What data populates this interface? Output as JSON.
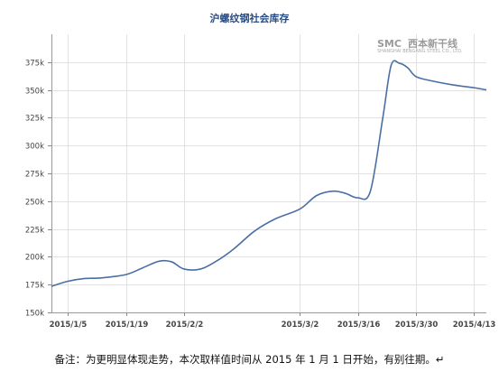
{
  "title": "沪螺纹钢社会库存",
  "note": "备注：为更明显体现走势，本次取样值时间从 2015 年 1 月 1 日开始，有别往期。↵",
  "watermark": {
    "logo": "SMC",
    "text": "西本新干线",
    "small": "SHANGHAI BENGANG STEEL CO., LTD."
  },
  "chart_data": {
    "type": "line",
    "title": "沪螺纹钢社会库存",
    "xlabel": "",
    "ylabel": "",
    "ylim": [
      150000,
      400000
    ],
    "y_ticks": [
      150000,
      175000,
      200000,
      225000,
      250000,
      275000,
      300000,
      325000,
      350000,
      375000
    ],
    "y_tick_labels": [
      "150k",
      "175k",
      "200k",
      "225k",
      "250k",
      "275k",
      "300k",
      "325k",
      "350k",
      "375k"
    ],
    "x_range": [
      "2015-01-01",
      "2015-04-16"
    ],
    "x_ticks": [
      "2015-01-05",
      "2015-01-19",
      "2015-02-02",
      "2015-03-02",
      "2015-03-16",
      "2015-03-30",
      "2015-04-13"
    ],
    "x_tick_labels": [
      "2015/1/5",
      "2015/1/19",
      "2015/2/2",
      "2015/3/2",
      "2015/3/16",
      "2015/3/30",
      "2015/4/13"
    ],
    "grid": true,
    "color": "#4a6fa5",
    "series": [
      {
        "x": [
          "2015-01-01",
          "2015-01-05",
          "2015-01-09",
          "2015-01-13",
          "2015-01-19",
          "2015-01-23",
          "2015-01-27",
          "2015-01-30",
          "2015-02-02",
          "2015-02-06",
          "2015-02-10",
          "2015-02-14",
          "2015-02-19",
          "2015-02-24",
          "2015-03-02",
          "2015-03-06",
          "2015-03-10",
          "2015-03-13",
          "2015-03-16",
          "2015-03-19",
          "2015-03-22",
          "2015-03-24",
          "2015-03-26",
          "2015-03-28",
          "2015-03-30",
          "2015-04-03",
          "2015-04-08",
          "2015-04-13",
          "2015-04-16"
        ],
        "values": [
          173500,
          178000,
          180500,
          181000,
          184000,
          190000,
          196000,
          195500,
          189000,
          189000,
          196500,
          207000,
          223000,
          234000,
          243000,
          255000,
          259000,
          257000,
          253000,
          259000,
          325000,
          372000,
          374000,
          370000,
          362000,
          358000,
          354500,
          352000,
          350000
        ]
      }
    ]
  }
}
